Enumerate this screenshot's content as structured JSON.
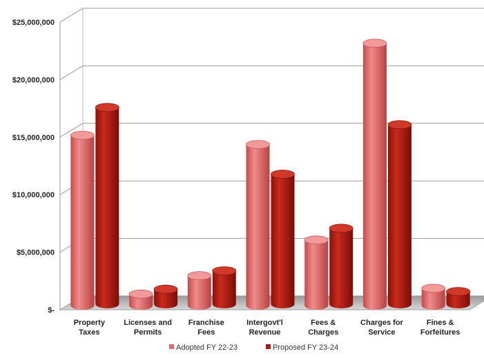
{
  "chart_data": {
    "type": "bar",
    "style": "3d-cylinder",
    "categories": [
      [
        "Property",
        "Taxes"
      ],
      [
        "Licenses and",
        "Permits"
      ],
      [
        "Franchise",
        "Fees"
      ],
      [
        "Intergovt'l",
        "Revenue"
      ],
      [
        "Fees &",
        "Charges"
      ],
      [
        "Charges for",
        "Service"
      ],
      [
        "Fines &",
        "Forfeitures"
      ]
    ],
    "series": [
      {
        "name": "Adopted FY 22-23",
        "color": "#e06b6b",
        "values": [
          14800000,
          1000000,
          2600000,
          14000000,
          5700000,
          22800000,
          1500000
        ]
      },
      {
        "name": "Proposed FY 23-24",
        "color": "#b01c10",
        "values": [
          17100000,
          1300000,
          2900000,
          11300000,
          6600000,
          15600000,
          1100000
        ]
      }
    ],
    "yticks": [
      "$-",
      "$5,000,000",
      "$10,000,000",
      "$15,000,000",
      "$20,000,000",
      "$25,000,000"
    ],
    "ylim": [
      0,
      25000000
    ],
    "grid": true,
    "legend_position": "bottom"
  }
}
